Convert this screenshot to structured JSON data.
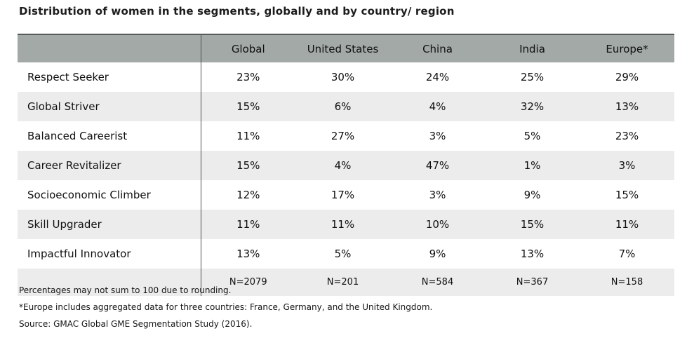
{
  "title": "Distribution of women in the segments, globally and by country/ region",
  "table": {
    "columns": [
      "",
      "Global",
      "United States",
      "China",
      "India",
      "Europe*"
    ],
    "rows": [
      {
        "label": "Respect Seeker",
        "values": [
          "23%",
          "30%",
          "24%",
          "25%",
          "29%"
        ]
      },
      {
        "label": "Global Striver",
        "values": [
          "15%",
          "6%",
          "4%",
          "32%",
          "13%"
        ]
      },
      {
        "label": "Balanced Careerist",
        "values": [
          "11%",
          "27%",
          "3%",
          "5%",
          "23%"
        ]
      },
      {
        "label": "Career Revitalizer",
        "values": [
          "15%",
          "4%",
          "47%",
          "1%",
          "3%"
        ]
      },
      {
        "label": "Socioeconomic Climber",
        "values": [
          "12%",
          "17%",
          "3%",
          "9%",
          "15%"
        ]
      },
      {
        "label": "Skill Upgrader",
        "values": [
          "11%",
          "11%",
          "10%",
          "15%",
          "11%"
        ]
      },
      {
        "label": "Impactful Innovator",
        "values": [
          "13%",
          "5%",
          "9%",
          "13%",
          "7%"
        ]
      }
    ],
    "n_row": {
      "label": "",
      "values": [
        "N=2079",
        "N=201",
        "N=584",
        "N=367",
        "N=158"
      ]
    }
  },
  "footnotes": [
    "Percentages may not sum to 100 due to rounding.",
    "*Europe includes aggregated data for three countries: France, Germany, and the United Kingdom.",
    "Source: GMAC Global GME Segmentation Study (2016)."
  ],
  "colors": {
    "header_bg": "#a2a9a7",
    "stripe_bg": "#ececec",
    "divider": "#4f4f4f",
    "header_top_border": "#595b5a"
  },
  "chart_data": {
    "type": "table",
    "title": "Distribution of women in the segments, globally and by country/ region",
    "row_labels": [
      "Respect Seeker",
      "Global Striver",
      "Balanced Careerist",
      "Career Revitalizer",
      "Socioeconomic Climber",
      "Skill Upgrader",
      "Impactful Innovator"
    ],
    "series": [
      {
        "name": "Global",
        "values_pct": [
          23,
          15,
          11,
          15,
          12,
          11,
          13
        ],
        "n": 2079
      },
      {
        "name": "United States",
        "values_pct": [
          30,
          6,
          27,
          4,
          17,
          11,
          5
        ],
        "n": 201
      },
      {
        "name": "China",
        "values_pct": [
          24,
          4,
          3,
          47,
          3,
          10,
          9
        ],
        "n": 584
      },
      {
        "name": "India",
        "values_pct": [
          25,
          32,
          5,
          1,
          9,
          15,
          13
        ],
        "n": 367
      },
      {
        "name": "Europe*",
        "values_pct": [
          29,
          13,
          23,
          3,
          15,
          11,
          7
        ],
        "n": 158
      }
    ],
    "notes": [
      "Percentages may not sum to 100 due to rounding.",
      "*Europe includes aggregated data for three countries: France, Germany, and the United Kingdom.",
      "Source: GMAC Global GME Segmentation Study (2016)."
    ]
  }
}
